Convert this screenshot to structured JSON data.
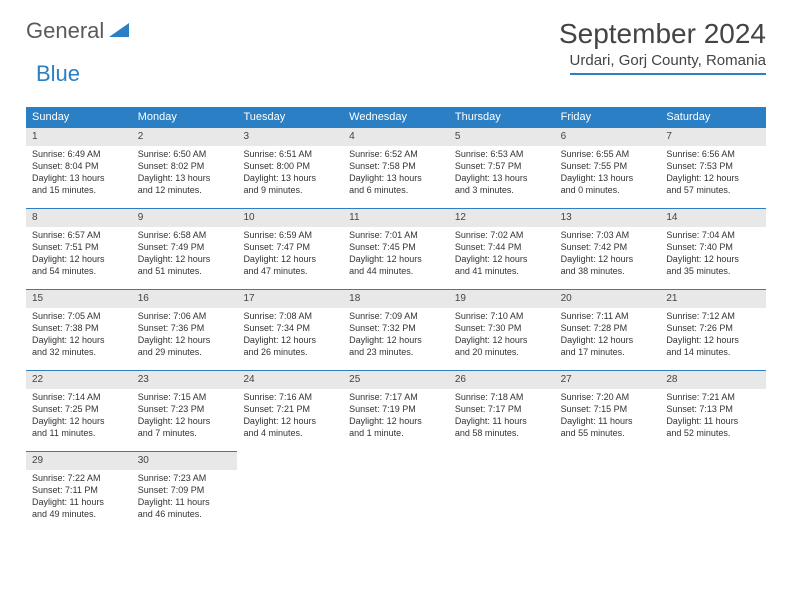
{
  "logo": {
    "name": "General",
    "blue": "Blue"
  },
  "title": "September 2024",
  "location": "Urdari, Gorj County, Romania",
  "colors": {
    "accent": "#2b7fc4",
    "daynum_bg": "#e8e8e8",
    "text": "#333333"
  },
  "day_headers": [
    "Sunday",
    "Monday",
    "Tuesday",
    "Wednesday",
    "Thursday",
    "Friday",
    "Saturday"
  ],
  "weeks": [
    [
      {
        "n": "1",
        "sr": "Sunrise: 6:49 AM",
        "ss": "Sunset: 8:04 PM",
        "d1": "Daylight: 13 hours",
        "d2": "and 15 minutes."
      },
      {
        "n": "2",
        "sr": "Sunrise: 6:50 AM",
        "ss": "Sunset: 8:02 PM",
        "d1": "Daylight: 13 hours",
        "d2": "and 12 minutes."
      },
      {
        "n": "3",
        "sr": "Sunrise: 6:51 AM",
        "ss": "Sunset: 8:00 PM",
        "d1": "Daylight: 13 hours",
        "d2": "and 9 minutes."
      },
      {
        "n": "4",
        "sr": "Sunrise: 6:52 AM",
        "ss": "Sunset: 7:58 PM",
        "d1": "Daylight: 13 hours",
        "d2": "and 6 minutes."
      },
      {
        "n": "5",
        "sr": "Sunrise: 6:53 AM",
        "ss": "Sunset: 7:57 PM",
        "d1": "Daylight: 13 hours",
        "d2": "and 3 minutes."
      },
      {
        "n": "6",
        "sr": "Sunrise: 6:55 AM",
        "ss": "Sunset: 7:55 PM",
        "d1": "Daylight: 13 hours",
        "d2": "and 0 minutes."
      },
      {
        "n": "7",
        "sr": "Sunrise: 6:56 AM",
        "ss": "Sunset: 7:53 PM",
        "d1": "Daylight: 12 hours",
        "d2": "and 57 minutes."
      }
    ],
    [
      {
        "n": "8",
        "sr": "Sunrise: 6:57 AM",
        "ss": "Sunset: 7:51 PM",
        "d1": "Daylight: 12 hours",
        "d2": "and 54 minutes."
      },
      {
        "n": "9",
        "sr": "Sunrise: 6:58 AM",
        "ss": "Sunset: 7:49 PM",
        "d1": "Daylight: 12 hours",
        "d2": "and 51 minutes."
      },
      {
        "n": "10",
        "sr": "Sunrise: 6:59 AM",
        "ss": "Sunset: 7:47 PM",
        "d1": "Daylight: 12 hours",
        "d2": "and 47 minutes."
      },
      {
        "n": "11",
        "sr": "Sunrise: 7:01 AM",
        "ss": "Sunset: 7:45 PM",
        "d1": "Daylight: 12 hours",
        "d2": "and 44 minutes."
      },
      {
        "n": "12",
        "sr": "Sunrise: 7:02 AM",
        "ss": "Sunset: 7:44 PM",
        "d1": "Daylight: 12 hours",
        "d2": "and 41 minutes."
      },
      {
        "n": "13",
        "sr": "Sunrise: 7:03 AM",
        "ss": "Sunset: 7:42 PM",
        "d1": "Daylight: 12 hours",
        "d2": "and 38 minutes."
      },
      {
        "n": "14",
        "sr": "Sunrise: 7:04 AM",
        "ss": "Sunset: 7:40 PM",
        "d1": "Daylight: 12 hours",
        "d2": "and 35 minutes."
      }
    ],
    [
      {
        "n": "15",
        "sr": "Sunrise: 7:05 AM",
        "ss": "Sunset: 7:38 PM",
        "d1": "Daylight: 12 hours",
        "d2": "and 32 minutes."
      },
      {
        "n": "16",
        "sr": "Sunrise: 7:06 AM",
        "ss": "Sunset: 7:36 PM",
        "d1": "Daylight: 12 hours",
        "d2": "and 29 minutes."
      },
      {
        "n": "17",
        "sr": "Sunrise: 7:08 AM",
        "ss": "Sunset: 7:34 PM",
        "d1": "Daylight: 12 hours",
        "d2": "and 26 minutes."
      },
      {
        "n": "18",
        "sr": "Sunrise: 7:09 AM",
        "ss": "Sunset: 7:32 PM",
        "d1": "Daylight: 12 hours",
        "d2": "and 23 minutes."
      },
      {
        "n": "19",
        "sr": "Sunrise: 7:10 AM",
        "ss": "Sunset: 7:30 PM",
        "d1": "Daylight: 12 hours",
        "d2": "and 20 minutes."
      },
      {
        "n": "20",
        "sr": "Sunrise: 7:11 AM",
        "ss": "Sunset: 7:28 PM",
        "d1": "Daylight: 12 hours",
        "d2": "and 17 minutes."
      },
      {
        "n": "21",
        "sr": "Sunrise: 7:12 AM",
        "ss": "Sunset: 7:26 PM",
        "d1": "Daylight: 12 hours",
        "d2": "and 14 minutes."
      }
    ],
    [
      {
        "n": "22",
        "sr": "Sunrise: 7:14 AM",
        "ss": "Sunset: 7:25 PM",
        "d1": "Daylight: 12 hours",
        "d2": "and 11 minutes."
      },
      {
        "n": "23",
        "sr": "Sunrise: 7:15 AM",
        "ss": "Sunset: 7:23 PM",
        "d1": "Daylight: 12 hours",
        "d2": "and 7 minutes."
      },
      {
        "n": "24",
        "sr": "Sunrise: 7:16 AM",
        "ss": "Sunset: 7:21 PM",
        "d1": "Daylight: 12 hours",
        "d2": "and 4 minutes."
      },
      {
        "n": "25",
        "sr": "Sunrise: 7:17 AM",
        "ss": "Sunset: 7:19 PM",
        "d1": "Daylight: 12 hours",
        "d2": "and 1 minute."
      },
      {
        "n": "26",
        "sr": "Sunrise: 7:18 AM",
        "ss": "Sunset: 7:17 PM",
        "d1": "Daylight: 11 hours",
        "d2": "and 58 minutes."
      },
      {
        "n": "27",
        "sr": "Sunrise: 7:20 AM",
        "ss": "Sunset: 7:15 PM",
        "d1": "Daylight: 11 hours",
        "d2": "and 55 minutes."
      },
      {
        "n": "28",
        "sr": "Sunrise: 7:21 AM",
        "ss": "Sunset: 7:13 PM",
        "d1": "Daylight: 11 hours",
        "d2": "and 52 minutes."
      }
    ],
    [
      {
        "n": "29",
        "sr": "Sunrise: 7:22 AM",
        "ss": "Sunset: 7:11 PM",
        "d1": "Daylight: 11 hours",
        "d2": "and 49 minutes."
      },
      {
        "n": "30",
        "sr": "Sunrise: 7:23 AM",
        "ss": "Sunset: 7:09 PM",
        "d1": "Daylight: 11 hours",
        "d2": "and 46 minutes."
      },
      null,
      null,
      null,
      null,
      null
    ]
  ]
}
